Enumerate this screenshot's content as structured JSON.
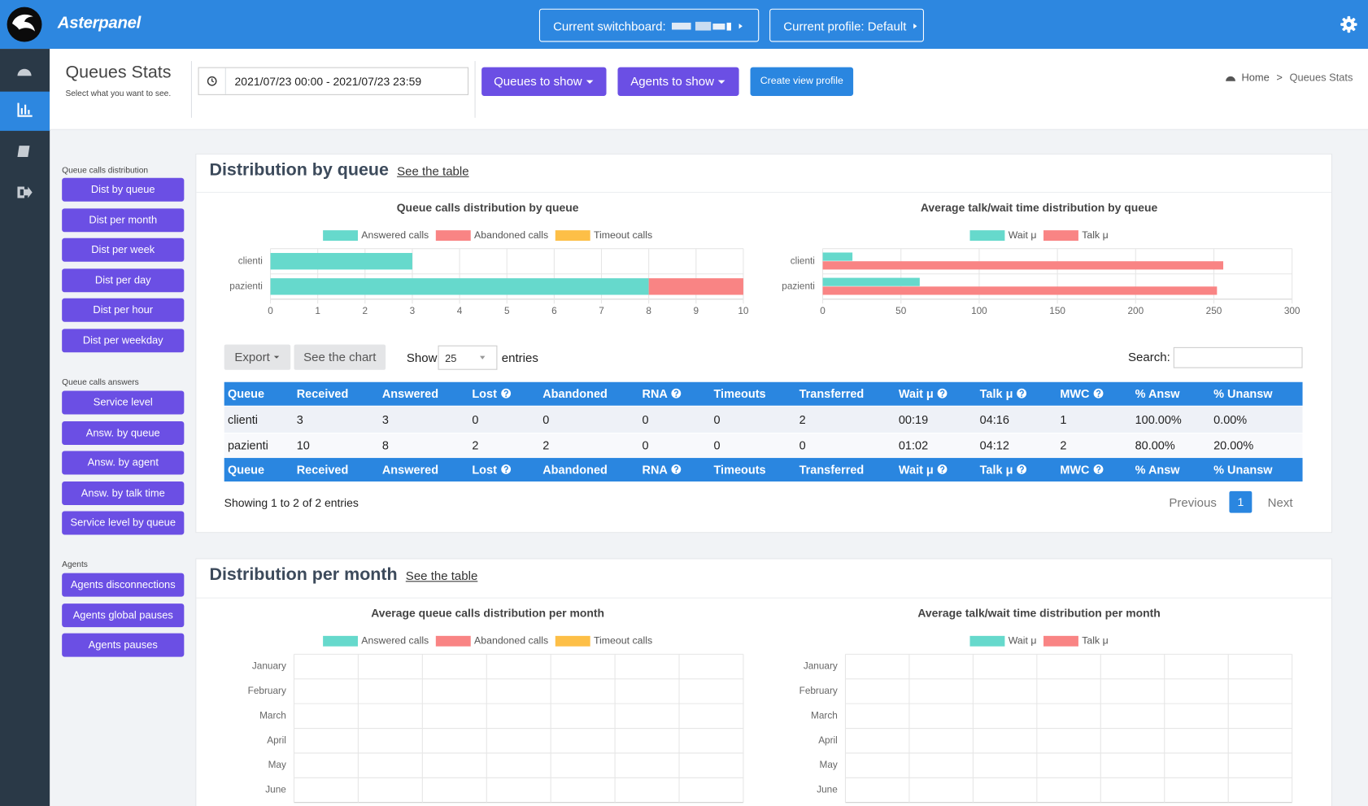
{
  "header": {
    "brand": "Asterpanel",
    "switchboard_label": "Current switchboard:",
    "profile_button": "Current profile: Default"
  },
  "page": {
    "title": "Queues Stats",
    "subtitle": "Select what you want to see.",
    "date_range": "2021/07/23 00:00 - 2021/07/23 23:59",
    "buttons": [
      "Queues to show",
      "Agents to show",
      "Create view profile"
    ],
    "breadcrumb": [
      "Home",
      "Queues Stats"
    ]
  },
  "menu": [
    {
      "heading": "Queue calls distribution",
      "items": [
        "Dist by queue",
        "Dist per month",
        "Dist per week",
        "Dist per day",
        "Dist per hour",
        "Dist per weekday"
      ]
    },
    {
      "heading": "Queue calls answers",
      "items": [
        "Service level",
        "Answ. by queue",
        "Answ. by agent",
        "Answ. by talk time",
        "Service level by queue"
      ]
    },
    {
      "heading": "Agents",
      "items": [
        "Agents disconnections",
        "Agents global pauses",
        "Agents pauses"
      ]
    }
  ],
  "sections": [
    {
      "title": "Distribution by queue",
      "link": "See the table",
      "charts": [
        {
          "type": "bar",
          "orientation": "horizontal",
          "stacked": true,
          "title": "Queue calls distribution by queue",
          "categories": [
            "clienti",
            "pazienti"
          ],
          "series": [
            {
              "name": "Answered calls",
              "color": "#66d9cc",
              "values": [
                3,
                8
              ]
            },
            {
              "name": "Abandoned calls",
              "color": "#f98484",
              "values": [
                0,
                2
              ]
            },
            {
              "name": "Timeout calls",
              "color": "#fdbf47",
              "values": [
                0,
                0
              ]
            }
          ],
          "xlim": [
            0,
            10
          ],
          "xticks": [
            0,
            1,
            2,
            3,
            4,
            5,
            6,
            7,
            8,
            9,
            10
          ]
        },
        {
          "type": "bar",
          "orientation": "horizontal",
          "stacked": false,
          "title": "Average talk/wait time distribution by queue",
          "categories": [
            "clienti",
            "pazienti"
          ],
          "series": [
            {
              "name": "Wait μ",
              "color": "#66d9cc",
              "values": [
                19,
                62
              ]
            },
            {
              "name": "Talk μ",
              "color": "#f98484",
              "values": [
                256,
                252
              ]
            }
          ],
          "xlim": [
            0,
            300
          ],
          "xticks": [
            0,
            50,
            100,
            150,
            200,
            250,
            300
          ]
        }
      ],
      "table": {
        "controls": {
          "export": "Export",
          "see_chart": "See the chart",
          "show": "Show",
          "page_length": "25",
          "entries": "entries",
          "search": "Search:"
        },
        "columns": [
          {
            "text": "Queue"
          },
          {
            "text": "Received"
          },
          {
            "text": "Answered"
          },
          {
            "text": "Lost",
            "help": true
          },
          {
            "text": "Abandoned"
          },
          {
            "text": "RNA",
            "help": true
          },
          {
            "text": "Timeouts"
          },
          {
            "text": "Transferred"
          },
          {
            "text": "Wait μ",
            "help": true
          },
          {
            "text": "Talk μ",
            "help": true
          },
          {
            "text": "MWC",
            "help": true
          },
          {
            "text": "% Answ"
          },
          {
            "text": "% Unansw"
          }
        ],
        "rows": [
          [
            "clienti",
            3,
            3,
            0,
            0,
            0,
            0,
            2,
            "00:19",
            "04:16",
            1,
            "100.00%",
            "0.00%"
          ],
          [
            "pazienti",
            10,
            8,
            2,
            2,
            0,
            0,
            0,
            "01:02",
            "04:12",
            2,
            "80.00%",
            "20.00%"
          ]
        ],
        "info": "Showing 1 to 2 of 2 entries",
        "pagination": [
          "Previous",
          "1",
          "Next"
        ]
      }
    },
    {
      "title": "Distribution per month",
      "link": "See the table",
      "charts": [
        {
          "type": "bar",
          "orientation": "horizontal",
          "stacked": true,
          "title": "Average queue calls distribution per month",
          "categories": [
            "January",
            "February",
            "March",
            "April",
            "May",
            "June"
          ],
          "series": [
            {
              "name": "Answered calls",
              "color": "#66d9cc"
            },
            {
              "name": "Abandoned calls",
              "color": "#f98484"
            },
            {
              "name": "Timeout calls",
              "color": "#fdbf47"
            }
          ]
        },
        {
          "type": "bar",
          "orientation": "horizontal",
          "stacked": false,
          "title": "Average talk/wait time distribution per month",
          "categories": [
            "January",
            "February",
            "March",
            "April",
            "May",
            "June"
          ],
          "series": [
            {
              "name": "Wait μ",
              "color": "#66d9cc"
            },
            {
              "name": "Talk μ",
              "color": "#f98484"
            }
          ]
        }
      ]
    }
  ]
}
